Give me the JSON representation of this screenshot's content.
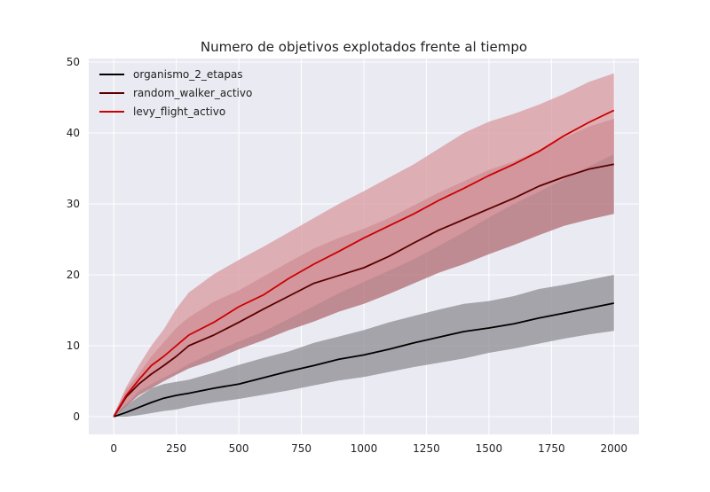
{
  "chart_data": {
    "type": "line",
    "title": "Numero de objetivos explotados frente al tiempo",
    "xlabel": "",
    "ylabel": "",
    "xlim": [
      -100,
      2100
    ],
    "ylim": [
      -2.5,
      50.5
    ],
    "xticks": [
      0,
      250,
      500,
      750,
      1000,
      1250,
      1500,
      1750,
      2000
    ],
    "yticks": [
      0,
      10,
      20,
      30,
      40,
      50
    ],
    "grid": true,
    "legend_position": "top-left",
    "x": [
      0,
      50,
      100,
      150,
      200,
      250,
      300,
      400,
      500,
      600,
      700,
      800,
      900,
      1000,
      1100,
      1200,
      1300,
      1400,
      1500,
      1600,
      1700,
      1800,
      1900,
      2000
    ],
    "series": [
      {
        "name": "organismo_2_etapas",
        "color": "#000000",
        "band_color": "#8c8c91",
        "values": [
          0,
          0.6,
          1.3,
          2.0,
          2.6,
          3.0,
          3.3,
          4.0,
          4.6,
          5.5,
          6.4,
          7.2,
          8.1,
          8.7,
          9.5,
          10.4,
          11.2,
          12.0,
          12.5,
          13.1,
          13.9,
          14.6,
          15.3,
          16.0
        ],
        "upper": [
          0.3,
          1.6,
          2.8,
          4.0,
          4.6,
          4.9,
          5.2,
          6.2,
          7.3,
          8.3,
          9.2,
          10.4,
          11.3,
          12.2,
          13.3,
          14.2,
          15.1,
          15.9,
          16.3,
          17.0,
          18.0,
          18.6,
          19.3,
          20.0
        ],
        "lower": [
          0,
          0,
          0.2,
          0.5,
          0.8,
          1.0,
          1.4,
          2.0,
          2.5,
          3.1,
          3.7,
          4.4,
          5.1,
          5.6,
          6.3,
          7.0,
          7.6,
          8.2,
          9.0,
          9.6,
          10.3,
          11.0,
          11.6,
          12.1
        ]
      },
      {
        "name": "random_walker_activo",
        "color": "#5a0000",
        "band_color": "#b06b72",
        "values": [
          0,
          2.8,
          4.6,
          6.0,
          7.2,
          8.5,
          10.0,
          11.5,
          13.3,
          15.2,
          17.0,
          18.8,
          19.9,
          21.0,
          22.6,
          24.5,
          26.3,
          27.8,
          29.3,
          30.8,
          32.5,
          33.8,
          34.9,
          35.6
        ],
        "upper": [
          0.3,
          3.8,
          6.0,
          8.5,
          10.5,
          12.5,
          14.0,
          16.2,
          17.8,
          19.8,
          21.8,
          23.7,
          25.2,
          26.5,
          28.0,
          29.8,
          31.6,
          33.2,
          34.8,
          36.0,
          37.6,
          39.3,
          40.9,
          42.0
        ],
        "lower": [
          0,
          1.5,
          3.0,
          4.0,
          5.0,
          5.9,
          6.8,
          8.0,
          9.5,
          10.8,
          12.2,
          13.4,
          14.8,
          15.9,
          17.3,
          18.8,
          20.3,
          21.5,
          22.9,
          24.2,
          25.6,
          26.9,
          27.8,
          28.6
        ]
      },
      {
        "name": "levy_flight_activo",
        "color": "#cc0000",
        "band_color": "#d99aa0",
        "values": [
          0,
          3.0,
          5.2,
          7.2,
          8.5,
          10.0,
          11.5,
          13.3,
          15.5,
          17.2,
          19.5,
          21.5,
          23.3,
          25.2,
          26.9,
          28.6,
          30.5,
          32.2,
          34.0,
          35.6,
          37.4,
          39.6,
          41.5,
          43.2
        ],
        "upper": [
          0.3,
          4.2,
          7.2,
          10.0,
          12.3,
          15.2,
          17.5,
          20.1,
          22.1,
          24.0,
          26.0,
          28.0,
          30.0,
          31.8,
          33.7,
          35.6,
          37.8,
          40.0,
          41.6,
          42.7,
          44.0,
          45.5,
          47.2,
          48.4
        ],
        "lower": [
          0,
          1.8,
          3.6,
          4.6,
          5.5,
          6.4,
          7.4,
          9.1,
          10.6,
          12.0,
          13.8,
          15.6,
          17.4,
          19.0,
          20.6,
          22.2,
          24.1,
          26.0,
          28.1,
          30.0,
          31.7,
          33.5,
          35.3,
          37.0
        ]
      }
    ]
  }
}
